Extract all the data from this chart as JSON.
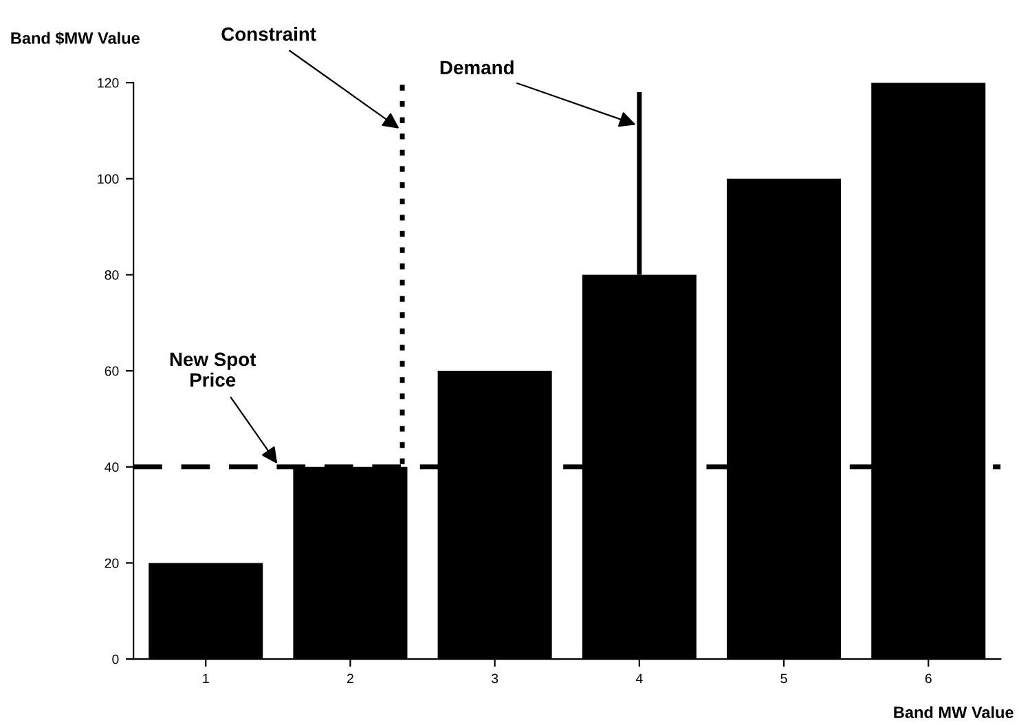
{
  "chart_data": {
    "type": "bar",
    "ylabel": "Band $MW Value",
    "xlabel": "Band MW Value",
    "x": [
      1,
      2,
      3,
      4,
      5,
      6
    ],
    "values": [
      20,
      40,
      60,
      80,
      100,
      120
    ],
    "errors": [
      null,
      null,
      null,
      [
        80,
        118
      ],
      null,
      null
    ],
    "color": "#000000",
    "xlim": [
      0.5,
      6.5
    ],
    "xticks": [
      1,
      2,
      3,
      4,
      5,
      6
    ],
    "ylim": [
      0,
      120
    ],
    "yticks": [
      0,
      20,
      40,
      60,
      80,
      100,
      120
    ],
    "grid": false,
    "ref_lines": [
      {
        "axis": "y",
        "value": 40,
        "line_style": "dashed",
        "color": "#000000"
      },
      {
        "axis": "x",
        "value": 2.36,
        "line_style": "dotted",
        "color": "#000000"
      }
    ],
    "annotations": [
      {
        "text": "Constraint",
        "x": 2.36,
        "y": 110
      },
      {
        "text": "Demand",
        "x": 4,
        "y": 111
      },
      {
        "text": "New Spot\nPrice",
        "x": 1.51,
        "y": 40
      }
    ]
  }
}
